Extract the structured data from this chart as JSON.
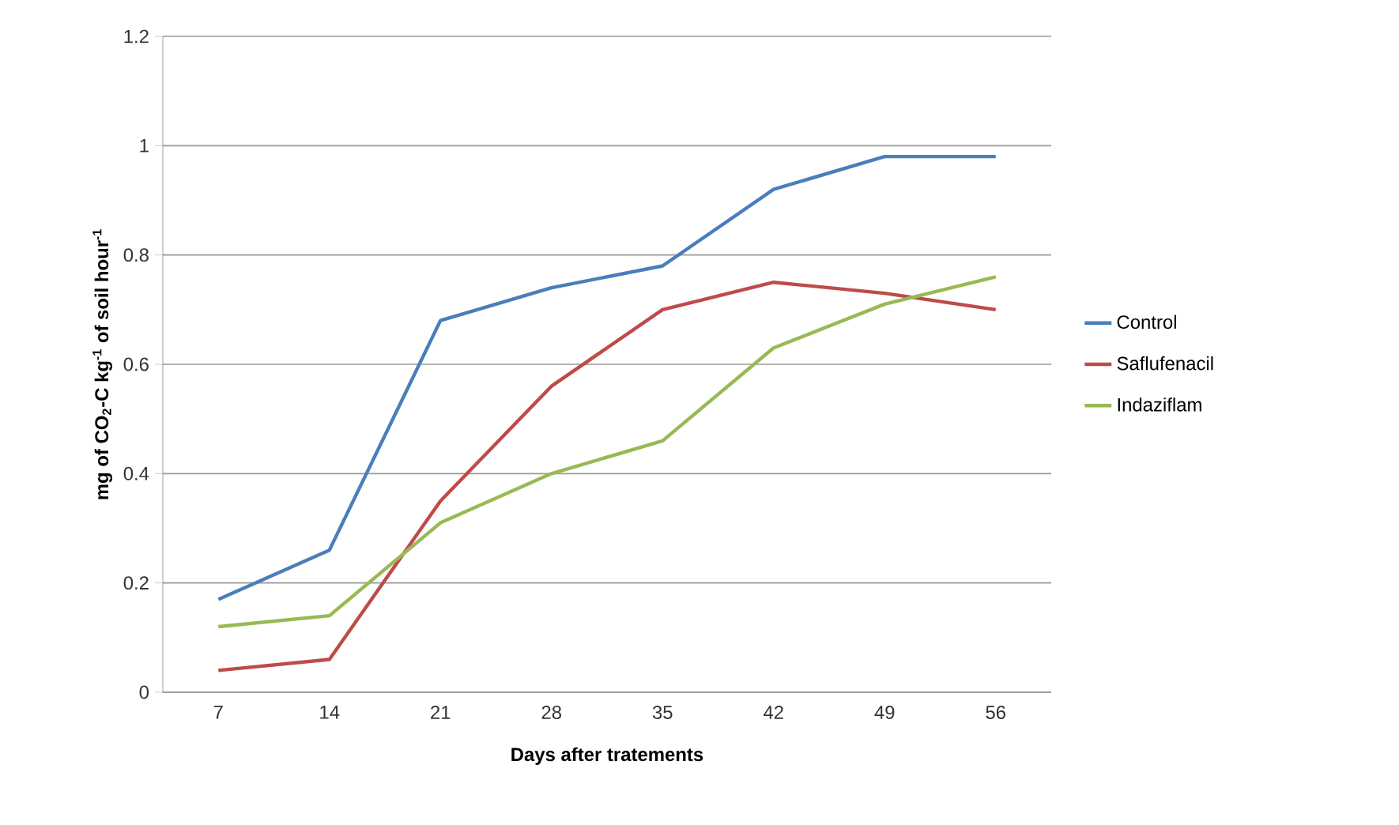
{
  "chart_data": {
    "type": "line",
    "xlabel": "Days after tratements",
    "ylabel": "mg of CO$_{2}$-C kg$^{-1}$ of soil hour$^{-1}$",
    "categories": [
      "7",
      "14",
      "21",
      "28",
      "35",
      "42",
      "49",
      "56"
    ],
    "series": [
      {
        "name": "Control",
        "color": "#4a7ebb",
        "values": [
          0.17,
          0.26,
          0.68,
          0.74,
          0.78,
          0.92,
          0.98,
          0.98
        ]
      },
      {
        "name": "Saflufenacil",
        "color": "#be4b48",
        "values": [
          0.04,
          0.06,
          0.35,
          0.56,
          0.7,
          0.75,
          0.73,
          0.7
        ]
      },
      {
        "name": "Indaziflam",
        "color": "#98b954",
        "values": [
          0.12,
          0.14,
          0.31,
          0.4,
          0.46,
          0.63,
          0.71,
          0.76
        ]
      }
    ],
    "ylim": [
      0,
      1.2
    ],
    "yticks": [
      0,
      0.2,
      0.4,
      0.6,
      0.8,
      1,
      1.2
    ],
    "grid": "y",
    "legend": "right",
    "marker": "none",
    "line_style": "solid"
  }
}
